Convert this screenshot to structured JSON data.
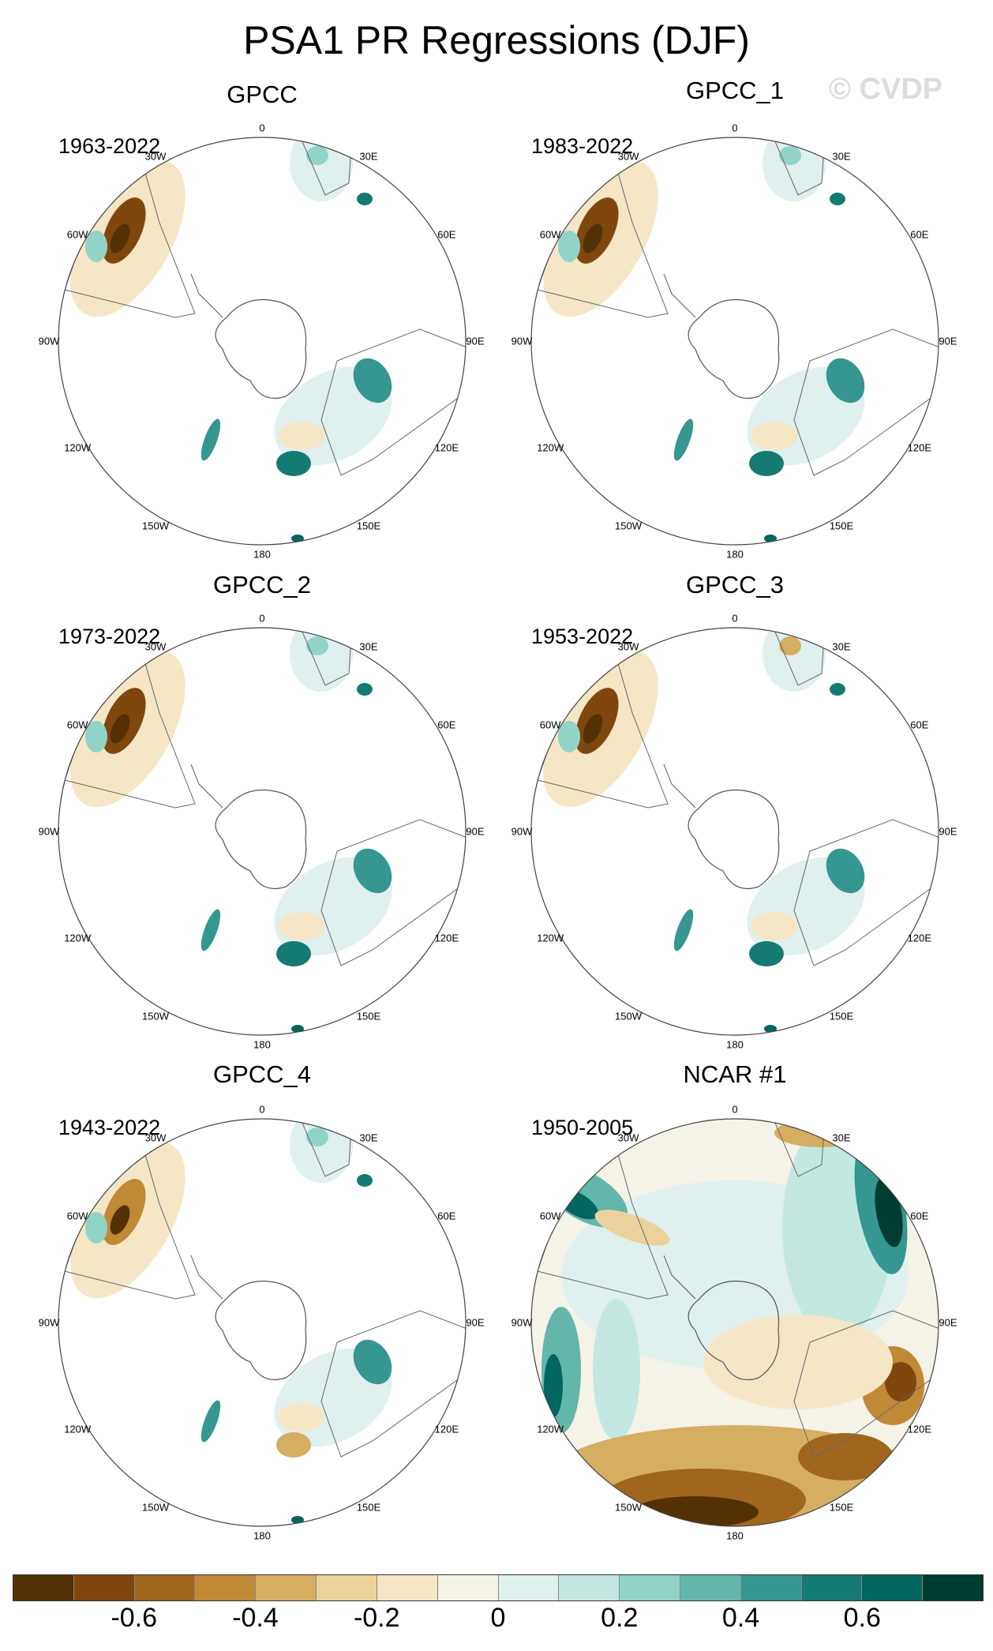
{
  "title": "PSA1 PR Regressions (DJF)",
  "watermark": "© CVDP",
  "panels": [
    {
      "name": "GPCC",
      "period": "1963-2022"
    },
    {
      "name": "GPCC_1",
      "period": "1983-2022"
    },
    {
      "name": "GPCC_2",
      "period": "1973-2022"
    },
    {
      "name": "GPCC_3",
      "period": "1953-2022"
    },
    {
      "name": "GPCC_4",
      "period": "1943-2022"
    },
    {
      "name": "NCAR #1",
      "period": "1950-2005"
    }
  ],
  "longitude_labels": [
    "0",
    "30E",
    "60E",
    "90E",
    "120E",
    "150E",
    "180",
    "150W",
    "120W",
    "90W",
    "60W",
    "30W"
  ],
  "colorbar": {
    "colors": [
      "#543005",
      "#7f470e",
      "#a0661e",
      "#c08936",
      "#d6ae62",
      "#ebd29c",
      "#f5e6c6",
      "#f5f2e8",
      "#dff0ef",
      "#c2e8e1",
      "#92d3c8",
      "#63b7aa",
      "#35978f",
      "#157a71",
      "#01665e",
      "#003c30"
    ],
    "tick_labels": [
      "-0.6",
      "-0.4",
      "-0.2",
      "0",
      "0.2",
      "0.4",
      "0.6"
    ]
  }
}
